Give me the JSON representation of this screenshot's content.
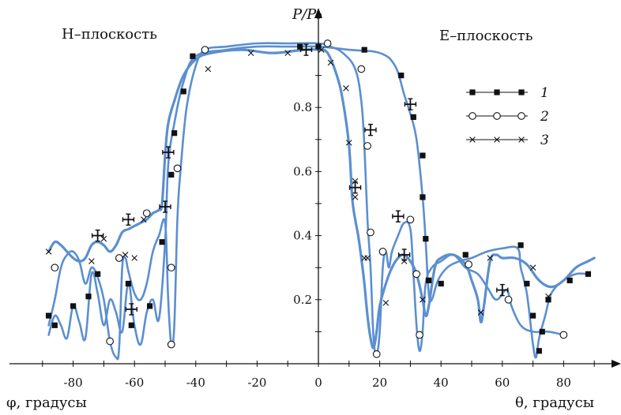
{
  "chart_data": {
    "type": "line",
    "ylabel": "P/P₀",
    "xlabel_left": "φ, градусы",
    "xlabel_right": "θ, градусы",
    "panel_left": "H–плоскость",
    "panel_right": "E–плоскость",
    "x_ticks": [
      -80,
      -60,
      -40,
      -20,
      0,
      20,
      40,
      60,
      80
    ],
    "y_ticks": [
      0.2,
      0.4,
      0.6,
      0.8
    ],
    "xlim": [
      -90,
      90
    ],
    "ylim": [
      0,
      1.0
    ],
    "grid": false,
    "legend_position": "top-right",
    "legend": [
      {
        "label": "1",
        "marker": "filled-square"
      },
      {
        "label": "2",
        "marker": "open-circle"
      },
      {
        "label": "3",
        "marker": "cross"
      }
    ],
    "colors": {
      "curve": "#5b8fd0",
      "marker": "#111111"
    },
    "series": [
      {
        "key": "1",
        "marker": "filled-square",
        "curves": [
          [
            [
              -88,
              0.09
            ],
            [
              -86,
              0.15
            ],
            [
              -84,
              0.12
            ],
            [
              -82,
              0.08
            ],
            [
              -80,
              0.18
            ],
            [
              -78,
              0.13
            ],
            [
              -76,
              0.08
            ],
            [
              -74,
              0.28
            ],
            [
              -72,
              0.22
            ],
            [
              -70,
              0.12
            ],
            [
              -68,
              0.2
            ],
            [
              -66,
              0.16
            ],
            [
              -64,
              0.1
            ],
            [
              -62,
              0.25
            ],
            [
              -60,
              0.12
            ],
            [
              -58,
              0.06
            ],
            [
              -56,
              0.16
            ],
            [
              -54,
              0.2
            ],
            [
              -52,
              0.14
            ],
            [
              -50,
              0.38
            ],
            [
              -49,
              0.62
            ],
            [
              -47,
              0.75
            ],
            [
              -44,
              0.88
            ],
            [
              -40,
              0.96
            ],
            [
              -30,
              0.98
            ],
            [
              -20,
              0.99
            ],
            [
              -10,
              0.99
            ],
            [
              0,
              0.99
            ],
            [
              10,
              0.98
            ],
            [
              20,
              0.97
            ],
            [
              25,
              0.93
            ],
            [
              28,
              0.84
            ],
            [
              30,
              0.78
            ],
            [
              32,
              0.7
            ],
            [
              34,
              0.52
            ],
            [
              35,
              0.38
            ],
            [
              36,
              0.22
            ],
            [
              37,
              0.2
            ],
            [
              39,
              0.26
            ],
            [
              42,
              0.3
            ],
            [
              46,
              0.32
            ],
            [
              50,
              0.33
            ],
            [
              55,
              0.35
            ],
            [
              60,
              0.36
            ],
            [
              65,
              0.36
            ],
            [
              66,
              0.3
            ],
            [
              68,
              0.22
            ],
            [
              70,
              0.06
            ],
            [
              71,
              0.02
            ],
            [
              72,
              0.08
            ],
            [
              74,
              0.15
            ],
            [
              76,
              0.22
            ],
            [
              80,
              0.26
            ],
            [
              84,
              0.28
            ],
            [
              88,
              0.28
            ]
          ]
        ],
        "markers": [
          [
            -88,
            0.15
          ],
          [
            -86,
            0.12
          ],
          [
            -80,
            0.18
          ],
          [
            -75,
            0.21
          ],
          [
            -72,
            0.28
          ],
          [
            -62,
            0.25
          ],
          [
            -61,
            0.12
          ],
          [
            -55,
            0.18
          ],
          [
            -51,
            0.38
          ],
          [
            -48,
            0.59
          ],
          [
            -47,
            0.72
          ],
          [
            -44,
            0.85
          ],
          [
            -41,
            0.96
          ],
          [
            -6,
            0.99
          ],
          [
            0,
            0.99
          ],
          [
            15,
            0.98
          ],
          [
            27,
            0.9
          ],
          [
            31,
            0.77
          ],
          [
            34,
            0.65
          ],
          [
            34,
            0.52
          ],
          [
            35,
            0.39
          ],
          [
            36,
            0.26
          ],
          [
            40,
            0.25
          ],
          [
            48,
            0.34
          ],
          [
            66,
            0.37
          ],
          [
            68,
            0.25
          ],
          [
            70,
            0.15
          ],
          [
            72,
            0.04
          ],
          [
            73,
            0.1
          ],
          [
            75,
            0.2
          ],
          [
            82,
            0.26
          ],
          [
            88,
            0.28
          ]
        ]
      },
      {
        "key": "2",
        "marker": "open-circle",
        "curves": [
          [
            [
              -88,
              0.12
            ],
            [
              -86,
              0.2
            ],
            [
              -84,
              0.3
            ],
            [
              -82,
              0.34
            ],
            [
              -80,
              0.35
            ],
            [
              -78,
              0.32
            ],
            [
              -76,
              0.25
            ],
            [
              -74,
              0.3
            ],
            [
              -72,
              0.27
            ],
            [
              -70,
              0.2
            ],
            [
              -68,
              0.07
            ],
            [
              -66,
              0.02
            ],
            [
              -65,
              0.05
            ],
            [
              -64,
              0.3
            ],
            [
              -63,
              0.33
            ],
            [
              -62,
              0.29
            ],
            [
              -60,
              0.22
            ],
            [
              -58,
              0.2
            ],
            [
              -56,
              0.25
            ],
            [
              -54,
              0.35
            ],
            [
              -52,
              0.4
            ],
            [
              -50,
              0.44
            ],
            [
              -49,
              0.2
            ],
            [
              -48,
              0.06
            ],
            [
              -47,
              0.12
            ],
            [
              -46,
              0.45
            ],
            [
              -45,
              0.6
            ],
            [
              -43,
              0.8
            ],
            [
              -40,
              0.93
            ],
            [
              -37,
              0.98
            ],
            [
              -30,
              0.99
            ],
            [
              -20,
              1.0
            ],
            [
              -10,
              1.0
            ],
            [
              0,
              1.0
            ],
            [
              4,
              0.99
            ],
            [
              8,
              0.97
            ],
            [
              12,
              0.92
            ],
            [
              14,
              0.82
            ],
            [
              15,
              0.68
            ],
            [
              16,
              0.45
            ],
            [
              17,
              0.3
            ],
            [
              18,
              0.08
            ],
            [
              19,
              0.03
            ],
            [
              20,
              0.1
            ],
            [
              21,
              0.3
            ],
            [
              22,
              0.35
            ],
            [
              23,
              0.3
            ],
            [
              24,
              0.35
            ],
            [
              26,
              0.4
            ],
            [
              28,
              0.44
            ],
            [
              30,
              0.42
            ],
            [
              31,
              0.28
            ],
            [
              32,
              0.12
            ],
            [
              33,
              0.04
            ],
            [
              34,
              0.1
            ],
            [
              35,
              0.25
            ],
            [
              37,
              0.3
            ],
            [
              40,
              0.32
            ],
            [
              44,
              0.34
            ],
            [
              48,
              0.3
            ],
            [
              52,
              0.28
            ],
            [
              55,
              0.24
            ],
            [
              58,
              0.2
            ],
            [
              61,
              0.23
            ],
            [
              62,
              0.22
            ],
            [
              63,
              0.18
            ],
            [
              66,
              0.12
            ],
            [
              70,
              0.1
            ],
            [
              75,
              0.1
            ],
            [
              80,
              0.09
            ]
          ]
        ],
        "markers": [
          [
            -86,
            0.3
          ],
          [
            -68,
            0.07
          ],
          [
            -65,
            0.33
          ],
          [
            -56,
            0.47
          ],
          [
            -48,
            0.3
          ],
          [
            -48,
            0.06
          ],
          [
            -46,
            0.61
          ],
          [
            -37,
            0.98
          ],
          [
            3,
            1.0
          ],
          [
            14,
            0.92
          ],
          [
            16,
            0.68
          ],
          [
            17,
            0.41
          ],
          [
            19,
            0.03
          ],
          [
            21,
            0.35
          ],
          [
            30,
            0.45
          ],
          [
            32,
            0.28
          ],
          [
            33,
            0.09
          ],
          [
            49,
            0.31
          ],
          [
            62,
            0.2
          ],
          [
            80,
            0.09
          ]
        ]
      },
      {
        "key": "3",
        "marker": "cross",
        "curves": [
          [
            [
              -88,
              0.35
            ],
            [
              -86,
              0.38
            ],
            [
              -84,
              0.37
            ],
            [
              -82,
              0.35
            ],
            [
              -80,
              0.33
            ],
            [
              -78,
              0.32
            ],
            [
              -76,
              0.33
            ],
            [
              -74,
              0.37
            ],
            [
              -72,
              0.38
            ],
            [
              -70,
              0.37
            ],
            [
              -68,
              0.35
            ],
            [
              -66,
              0.37
            ],
            [
              -64,
              0.41
            ],
            [
              -62,
              0.42
            ],
            [
              -60,
              0.43
            ],
            [
              -58,
              0.44
            ],
            [
              -56,
              0.45
            ],
            [
              -54,
              0.47
            ],
            [
              -52,
              0.48
            ],
            [
              -51,
              0.5
            ],
            [
              -50,
              0.65
            ],
            [
              -49,
              0.75
            ],
            [
              -47,
              0.82
            ],
            [
              -44,
              0.9
            ],
            [
              -40,
              0.95
            ],
            [
              -35,
              0.97
            ],
            [
              -25,
              0.98
            ],
            [
              -15,
              0.97
            ],
            [
              -5,
              0.98
            ],
            [
              0,
              0.98
            ],
            [
              3,
              0.97
            ],
            [
              6,
              0.9
            ],
            [
              8,
              0.82
            ],
            [
              10,
              0.68
            ],
            [
              11,
              0.52
            ],
            [
              12,
              0.45
            ],
            [
              13,
              0.4
            ],
            [
              14,
              0.33
            ],
            [
              15,
              0.25
            ],
            [
              16,
              0.15
            ],
            [
              17,
              0.08
            ],
            [
              18,
              0.05
            ],
            [
              19,
              0.1
            ],
            [
              20,
              0.18
            ],
            [
              22,
              0.25
            ],
            [
              24,
              0.3
            ],
            [
              26,
              0.33
            ],
            [
              28,
              0.34
            ],
            [
              30,
              0.32
            ],
            [
              32,
              0.28
            ],
            [
              34,
              0.2
            ],
            [
              35,
              0.15
            ],
            [
              36,
              0.18
            ],
            [
              38,
              0.3
            ],
            [
              40,
              0.33
            ],
            [
              44,
              0.34
            ],
            [
              48,
              0.31
            ],
            [
              50,
              0.26
            ],
            [
              52,
              0.2
            ],
            [
              53,
              0.13
            ],
            [
              54,
              0.18
            ],
            [
              56,
              0.32
            ],
            [
              58,
              0.34
            ],
            [
              60,
              0.33
            ],
            [
              64,
              0.33
            ],
            [
              68,
              0.31
            ],
            [
              72,
              0.26
            ],
            [
              76,
              0.24
            ],
            [
              80,
              0.26
            ],
            [
              84,
              0.3
            ],
            [
              88,
              0.32
            ],
            [
              90,
              0.33
            ]
          ]
        ],
        "markers": [
          [
            -88,
            0.35
          ],
          [
            -74,
            0.32
          ],
          [
            -70,
            0.39
          ],
          [
            -63,
            0.34
          ],
          [
            -60,
            0.33
          ],
          [
            -57,
            0.45
          ],
          [
            -36,
            0.92
          ],
          [
            -22,
            0.97
          ],
          [
            -10,
            0.97
          ],
          [
            1,
            0.98
          ],
          [
            4,
            0.94
          ],
          [
            9,
            0.86
          ],
          [
            10,
            0.69
          ],
          [
            12,
            0.57
          ],
          [
            12,
            0.52
          ],
          [
            15,
            0.33
          ],
          [
            16,
            0.33
          ],
          [
            22,
            0.19
          ],
          [
            28,
            0.32
          ],
          [
            34,
            0.2
          ],
          [
            53,
            0.16
          ],
          [
            56,
            0.33
          ],
          [
            70,
            0.3
          ],
          [
            75,
            0.21
          ]
        ]
      }
    ],
    "error_bars": [
      [
        -72,
        0.4
      ],
      [
        -62,
        0.45
      ],
      [
        -61,
        0.17
      ],
      [
        -50,
        0.49
      ],
      [
        -49,
        0.66
      ],
      [
        -4,
        0.98
      ],
      [
        12,
        0.55
      ],
      [
        17,
        0.73
      ],
      [
        26,
        0.46
      ],
      [
        28,
        0.34
      ],
      [
        30,
        0.81
      ],
      [
        60,
        0.23
      ]
    ]
  }
}
